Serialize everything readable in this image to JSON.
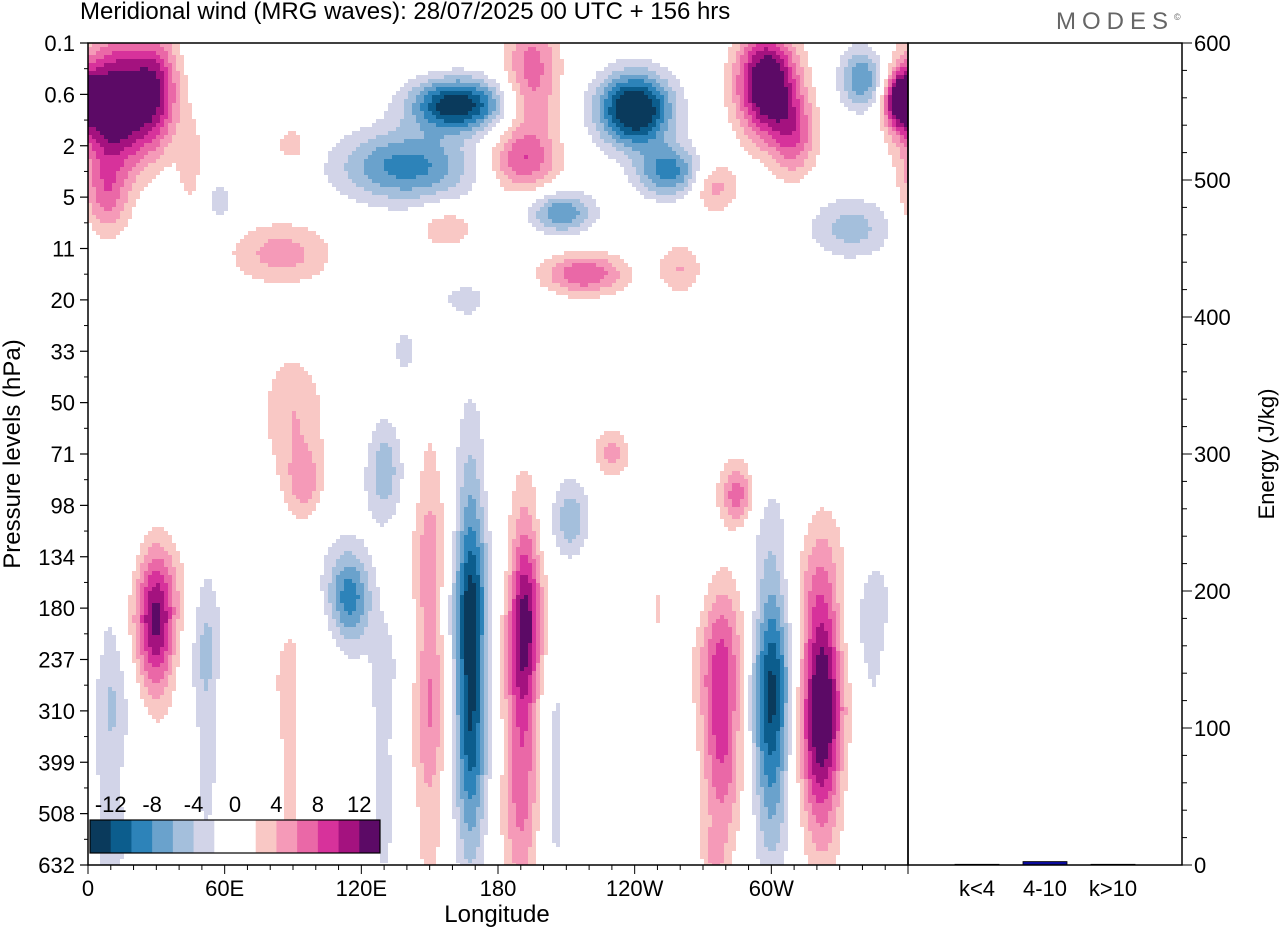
{
  "header": {
    "title": "Meridional wind (MRG waves):  28/07/2025  00 UTC  + 156 hrs",
    "logo": "MODES",
    "logo_mark": "©"
  },
  "colors": {
    "neg": [
      "#0a3a5c",
      "#0c5d8d",
      "#2d83b9",
      "#6aa2cc",
      "#a4bfdc",
      "#d2d4e8"
    ],
    "pos": [
      "#f9c8c5",
      "#f59ab8",
      "#ea68a7",
      "#d7329b",
      "#a4127f",
      "#5c0a66"
    ],
    "bar": "#0b0b9c"
  },
  "chart_data": [
    {
      "type": "heatmap",
      "title": "Meridional wind (MRG waves)",
      "xlabel": "Longitude",
      "ylabel": "Pressure levels (hPa)",
      "x_ticks": [
        "0",
        "60E",
        "120E",
        "180",
        "120W",
        "60W"
      ],
      "x_tick_values": [
        0,
        60,
        120,
        180,
        240,
        300
      ],
      "xlim": [
        0,
        360
      ],
      "y_ticks": [
        "0.1",
        "0.6",
        "2",
        "5",
        "11",
        "20",
        "33",
        "50",
        "71",
        "98",
        "134",
        "180",
        "237",
        "310",
        "399",
        "508",
        "632"
      ],
      "colorbar": {
        "labels": [
          "-12",
          "-8",
          "-4",
          "0",
          "4",
          "8",
          "12"
        ],
        "levels": [
          -14,
          -12,
          -10,
          -8,
          -6,
          -4,
          -2,
          2,
          4,
          6,
          8,
          10,
          12,
          14
        ]
      },
      "features": [
        {
          "lon": 12,
          "level": 1.2,
          "value": 16,
          "dlon": 16,
          "dlev": 1.2
        },
        {
          "lon": 30,
          "level": 0.9,
          "value": 9,
          "dlon": 10,
          "dlev": 1.1
        },
        {
          "lon": 8,
          "level": 3.0,
          "value": 6,
          "dlon": 10,
          "dlev": 0.8
        },
        {
          "lon": 45,
          "level": 2.3,
          "value": 3,
          "dlon": 6,
          "dlev": 1.0
        },
        {
          "lon": 58,
          "level": 3.1,
          "value": -3,
          "dlon": 6,
          "dlev": 0.5
        },
        {
          "lon": 85,
          "level": 4.1,
          "value": 5,
          "dlon": 22,
          "dlev": 0.6
        },
        {
          "lon": 90,
          "level": 2.0,
          "value": 3,
          "dlon": 10,
          "dlev": 0.5
        },
        {
          "lon": 140,
          "level": 2.4,
          "value": -9,
          "dlon": 30,
          "dlev": 0.7
        },
        {
          "lon": 162,
          "level": 1.2,
          "value": -14,
          "dlon": 20,
          "dlev": 0.5
        },
        {
          "lon": 158,
          "level": 3.6,
          "value": 4,
          "dlon": 12,
          "dlev": 0.4
        },
        {
          "lon": 195,
          "level": 0.6,
          "value": 7,
          "dlon": 12,
          "dlev": 1.4
        },
        {
          "lon": 190,
          "level": 2.3,
          "value": 7,
          "dlon": 16,
          "dlev": 0.6
        },
        {
          "lon": 208,
          "level": 3.3,
          "value": -8,
          "dlon": 14,
          "dlev": 0.4
        },
        {
          "lon": 240,
          "level": 1.3,
          "value": -16,
          "dlon": 16,
          "dlev": 0.7
        },
        {
          "lon": 255,
          "level": 2.5,
          "value": -9,
          "dlon": 14,
          "dlev": 0.5
        },
        {
          "lon": 218,
          "level": 4.5,
          "value": 8,
          "dlon": 18,
          "dlev": 0.4
        },
        {
          "lon": 275,
          "level": 2.8,
          "value": 5,
          "dlon": 10,
          "dlev": 0.5
        },
        {
          "lon": 298,
          "level": 0.8,
          "value": 16,
          "dlon": 13,
          "dlev": 1.0
        },
        {
          "lon": 310,
          "level": 1.8,
          "value": 7,
          "dlon": 10,
          "dlev": 0.8
        },
        {
          "lon": 340,
          "level": 0.7,
          "value": -8,
          "dlon": 10,
          "dlev": 0.6
        },
        {
          "lon": 357,
          "level": 1.1,
          "value": 14,
          "dlon": 7,
          "dlev": 0.5
        },
        {
          "lon": 335,
          "level": 3.6,
          "value": -5,
          "dlon": 18,
          "dlev": 0.6
        },
        {
          "lon": 260,
          "level": 4.4,
          "value": 4,
          "dlon": 10,
          "dlev": 0.5
        },
        {
          "lon": 165,
          "level": 5.0,
          "value": -2.5,
          "dlon": 14,
          "dlev": 0.4
        },
        {
          "lon": 140,
          "level": 6.0,
          "value": -2.5,
          "dlon": 10,
          "dlev": 0.7
        },
        {
          "lon": 90,
          "level": 7.2,
          "value": 4,
          "dlon": 14,
          "dlev": 1.2
        },
        {
          "lon": 95,
          "level": 8.6,
          "value": 4.5,
          "dlon": 8,
          "dlev": 0.7
        },
        {
          "lon": 130,
          "level": 8.3,
          "value": -5,
          "dlon": 8,
          "dlev": 1.0
        },
        {
          "lon": 230,
          "level": 8.0,
          "value": 5,
          "dlon": 8,
          "dlev": 0.5
        },
        {
          "lon": 285,
          "level": 8.8,
          "value": 7,
          "dlon": 7,
          "dlev": 0.6
        },
        {
          "lon": 212,
          "level": 9.3,
          "value": -5,
          "dlon": 8,
          "dlev": 0.8
        },
        {
          "lon": 30,
          "level": 11.3,
          "value": 12,
          "dlon": 9,
          "dlev": 1.5
        },
        {
          "lon": 52,
          "level": 12.5,
          "value": -4,
          "dlon": 6,
          "dlev": 3.0
        },
        {
          "lon": 115,
          "level": 10.8,
          "value": -10,
          "dlon": 10,
          "dlev": 0.9
        },
        {
          "lon": 150,
          "level": 12.0,
          "value": 6,
          "dlon": 7,
          "dlev": 4.2
        },
        {
          "lon": 168,
          "level": 12.0,
          "value": -14,
          "dlon": 7,
          "dlev": 3.6
        },
        {
          "lon": 192,
          "level": 11.0,
          "value": 10,
          "dlon": 7,
          "dlev": 2.0
        },
        {
          "lon": 190,
          "level": 14.0,
          "value": 7,
          "dlon": 8,
          "dlev": 3.0
        },
        {
          "lon": 250,
          "level": 11.0,
          "value": 3,
          "dlon": 6,
          "dlev": 1.0
        },
        {
          "lon": 278,
          "level": 13.0,
          "value": 10,
          "dlon": 9,
          "dlev": 2.4
        },
        {
          "lon": 300,
          "level": 12.8,
          "value": -12,
          "dlon": 8,
          "dlev": 2.8
        },
        {
          "lon": 322,
          "level": 12.8,
          "value": 15,
          "dlon": 9,
          "dlev": 2.6
        },
        {
          "lon": 10,
          "level": 12.5,
          "value": -4,
          "dlon": 8,
          "dlev": 2.0
        },
        {
          "lon": 10,
          "level": 15.5,
          "value": -3,
          "dlon": 8,
          "dlev": 1.2
        },
        {
          "lon": 88,
          "level": 13.8,
          "value": 3,
          "dlon": 6,
          "dlev": 2.5
        },
        {
          "lon": 130,
          "level": 14.0,
          "value": -3,
          "dlon": 6,
          "dlev": 3.0
        },
        {
          "lon": 205,
          "level": 14.5,
          "value": -3,
          "dlon": 6,
          "dlev": 2.0
        },
        {
          "lon": 345,
          "level": 12.0,
          "value": -3,
          "dlon": 8,
          "dlev": 2.0
        },
        {
          "lon": 275,
          "level": 15.8,
          "value": 3,
          "dlon": 5,
          "dlev": 0.5
        }
      ]
    },
    {
      "type": "bar",
      "title": "",
      "ylabel": "Energy (J/kg)",
      "categories": [
        "k<4",
        "4-10",
        "k>10"
      ],
      "values": [
        0.5,
        2.5,
        0.5
      ],
      "ylim": [
        0,
        600
      ],
      "y_ticks": [
        "0",
        "100",
        "200",
        "300",
        "400",
        "500",
        "600"
      ]
    }
  ]
}
